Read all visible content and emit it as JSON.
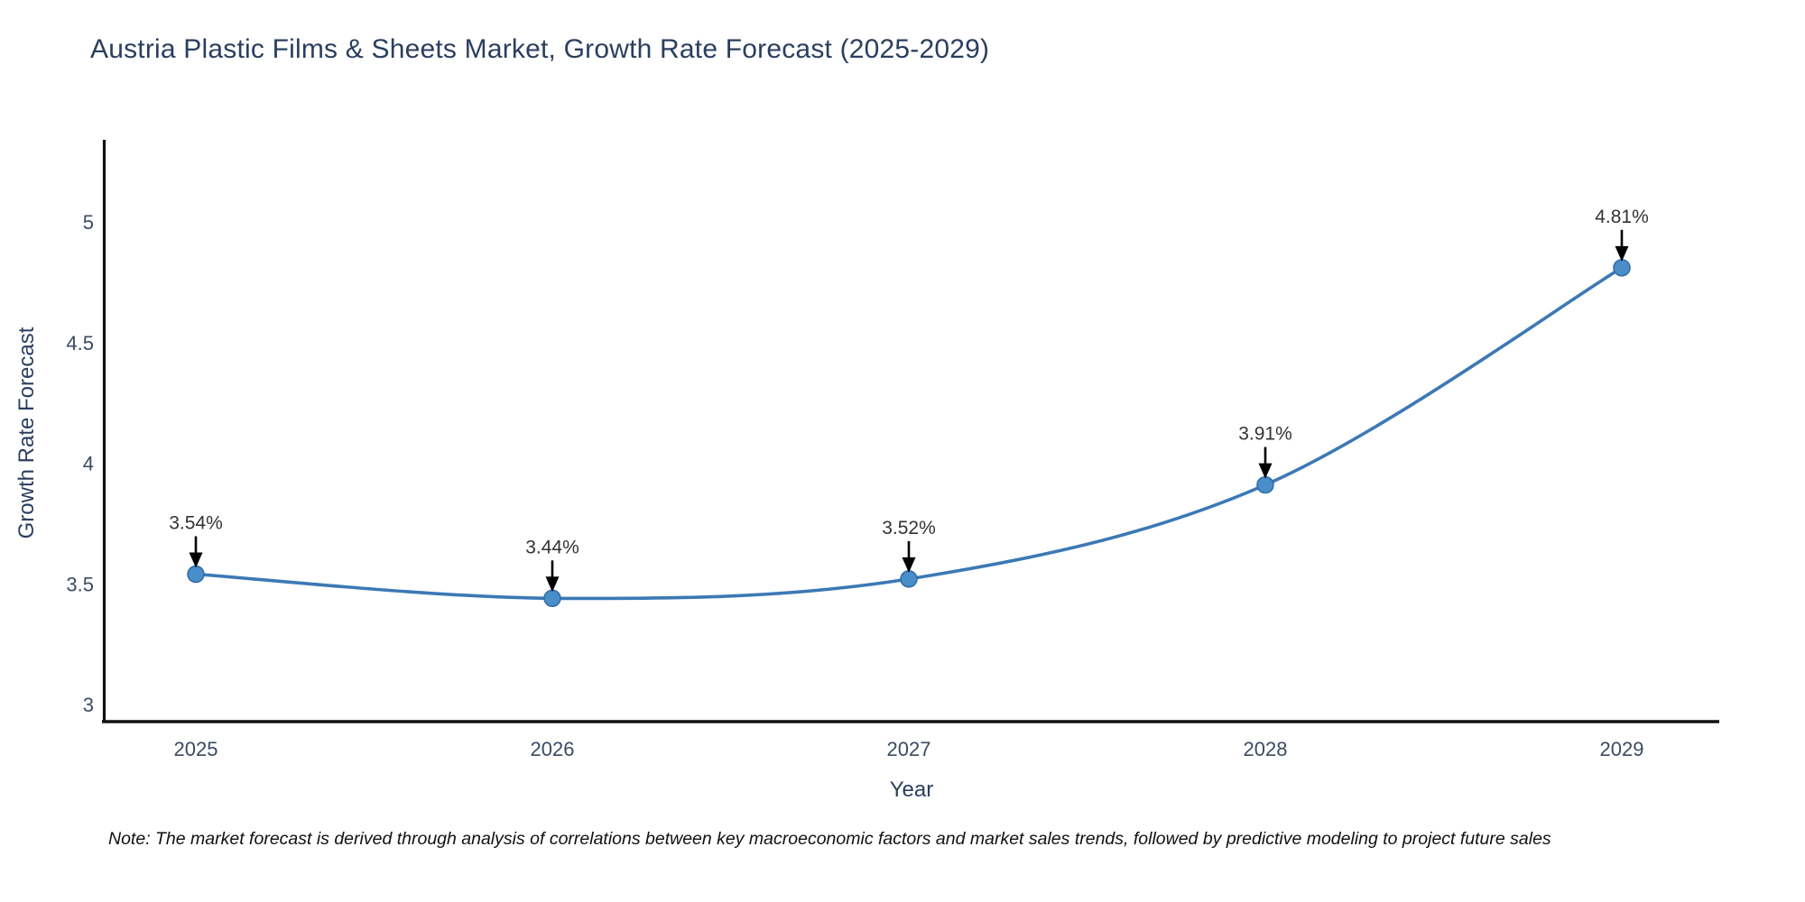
{
  "title": "Austria Plastic Films & Sheets Market, Growth Rate Forecast (2025-2029)",
  "note": "Note: The market forecast is derived through analysis of correlations between key macroeconomic factors and market sales trends, followed by predictive modeling to project future sales",
  "chart_data": {
    "type": "line",
    "title": "Austria Plastic Films & Sheets Market, Growth Rate Forecast (2025-2029)",
    "xlabel": "Year",
    "ylabel": "Growth Rate Forecast",
    "x": [
      2025,
      2026,
      2027,
      2028,
      2029
    ],
    "values": [
      3.54,
      3.44,
      3.52,
      3.91,
      4.81
    ],
    "point_labels": [
      "3.54%",
      "3.44%",
      "3.52%",
      "3.91%",
      "4.81%"
    ],
    "xtick_labels": [
      "2025",
      "2026",
      "2027",
      "2028",
      "2029"
    ],
    "ytick_values": [
      3,
      3.5,
      4,
      4.5,
      5
    ],
    "ytick_labels": [
      "3",
      "3.5",
      "4",
      "4.5",
      "5"
    ],
    "ylim": [
      2.93,
      5.34
    ],
    "line_shape": "spline",
    "grid": false,
    "legend": "none",
    "annotations_have_arrows": true,
    "colors": {
      "line": "#3c79b5",
      "marker_fill": "#4a8ec9",
      "marker_edge": "#2e6da4",
      "arrow": "#000000",
      "axis_line": "#111111",
      "title_text": "#2a3f5f",
      "tick_text": "#3b4a63",
      "annotation_text": "#333333"
    }
  }
}
